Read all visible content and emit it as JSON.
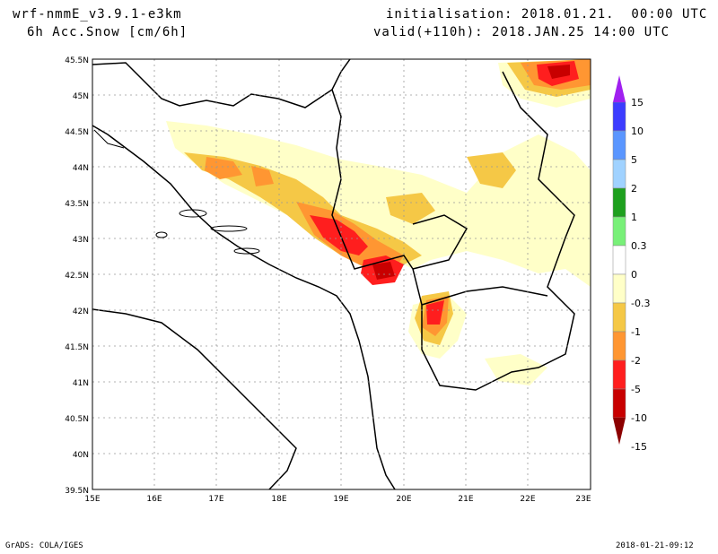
{
  "header": {
    "model": "wrf-nmmE_v3.9.1-e3km",
    "field": "6h Acc.Snow [cm/6h]",
    "init": "initialisation: 2018.01.21.  00:00 UTC",
    "valid": "valid(+110h): 2018.JAN.25 14:00 UTC"
  },
  "footer": {
    "left": "GrADS: COLA/IGES",
    "right": "2018-01-21-09:12"
  },
  "map": {
    "lon_labels": [
      "15E",
      "16E",
      "17E",
      "18E",
      "19E",
      "20E",
      "21E",
      "22E",
      "23E"
    ],
    "lat_labels": [
      "45.5N",
      "45N",
      "44.5N",
      "44N",
      "43.5N",
      "43N",
      "42.5N",
      "42N",
      "41.5N",
      "41N",
      "40.5N",
      "40N",
      "39.5N"
    ]
  },
  "colorbar": {
    "labels": [
      "15",
      "10",
      "5",
      "2",
      "1",
      "0.3",
      "0",
      "-0.3",
      "-1",
      "-2",
      "-5",
      "-10",
      "-15"
    ],
    "colors": [
      "#a020f0",
      "#3c3cff",
      "#5a96ff",
      "#a0d2ff",
      "#1ea01e",
      "#78f078",
      "#ffffff",
      "#ffffc8",
      "#f5c846",
      "#ff9632",
      "#ff1e1e",
      "#c80000",
      "#8c0000"
    ]
  }
}
